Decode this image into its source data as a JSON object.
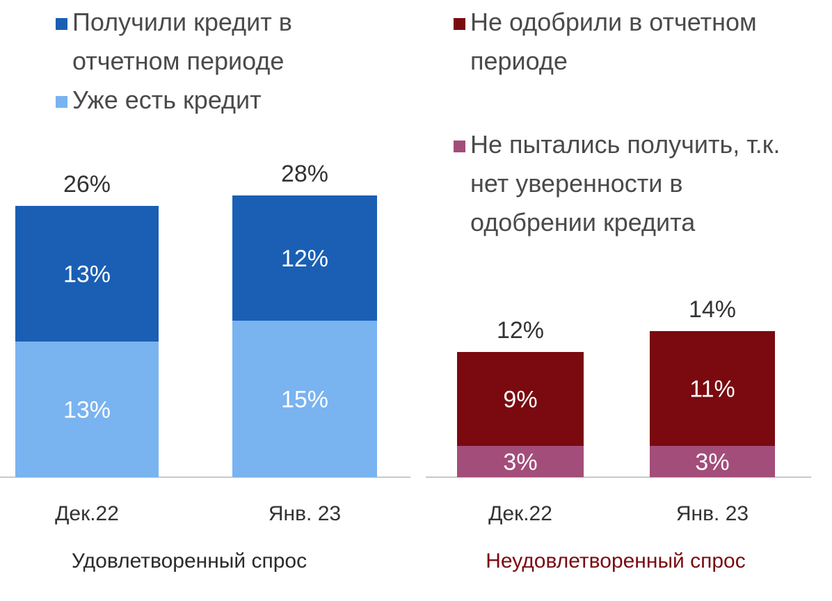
{
  "colors": {
    "received": "#1a5fb4",
    "existing": "#79b3f0",
    "not_approved": "#7a0a10",
    "did_not_try": "#a34d7a",
    "axis": "#c8c8c8",
    "group_satisfied": "#2b2b2b",
    "group_unsatisfied": "#7a0a10"
  },
  "legend": {
    "received": "Получили кредит в отчетном периоде",
    "existing": "Уже есть кредит",
    "not_approved": "Не одобрили в отчетном периоде",
    "did_not_try": "Не пытались получить, т.к. нет уверенности  в одобрении кредита"
  },
  "chart_data": [
    {
      "type": "bar",
      "stacked": true,
      "group_label": "Удовлетворенный спрос",
      "categories": [
        "Дек.22",
        "Янв. 23"
      ],
      "series": [
        {
          "name": "Уже есть кредит",
          "values": [
            13,
            15
          ]
        },
        {
          "name": "Получили кредит в отчетном периоде",
          "values": [
            13,
            12
          ]
        }
      ],
      "totals": [
        26,
        28
      ],
      "value_labels": [
        [
          "13%",
          "15%"
        ],
        [
          "13%",
          "12%"
        ]
      ],
      "total_labels": [
        "26%",
        "28%"
      ]
    },
    {
      "type": "bar",
      "stacked": true,
      "group_label": "Неудовлетворенный спрос",
      "categories": [
        "Дек.22",
        "Янв. 23"
      ],
      "series": [
        {
          "name": "Не пытались получить, т.к. нет уверенности  в одобрении кредита",
          "values": [
            3,
            3
          ]
        },
        {
          "name": "Не одобрили в отчетном периоде",
          "values": [
            9,
            11
          ]
        }
      ],
      "totals": [
        12,
        14
      ],
      "value_labels": [
        [
          "3%",
          "3%"
        ],
        [
          "9%",
          "11%"
        ]
      ],
      "total_labels": [
        "12%",
        "14%"
      ]
    }
  ]
}
